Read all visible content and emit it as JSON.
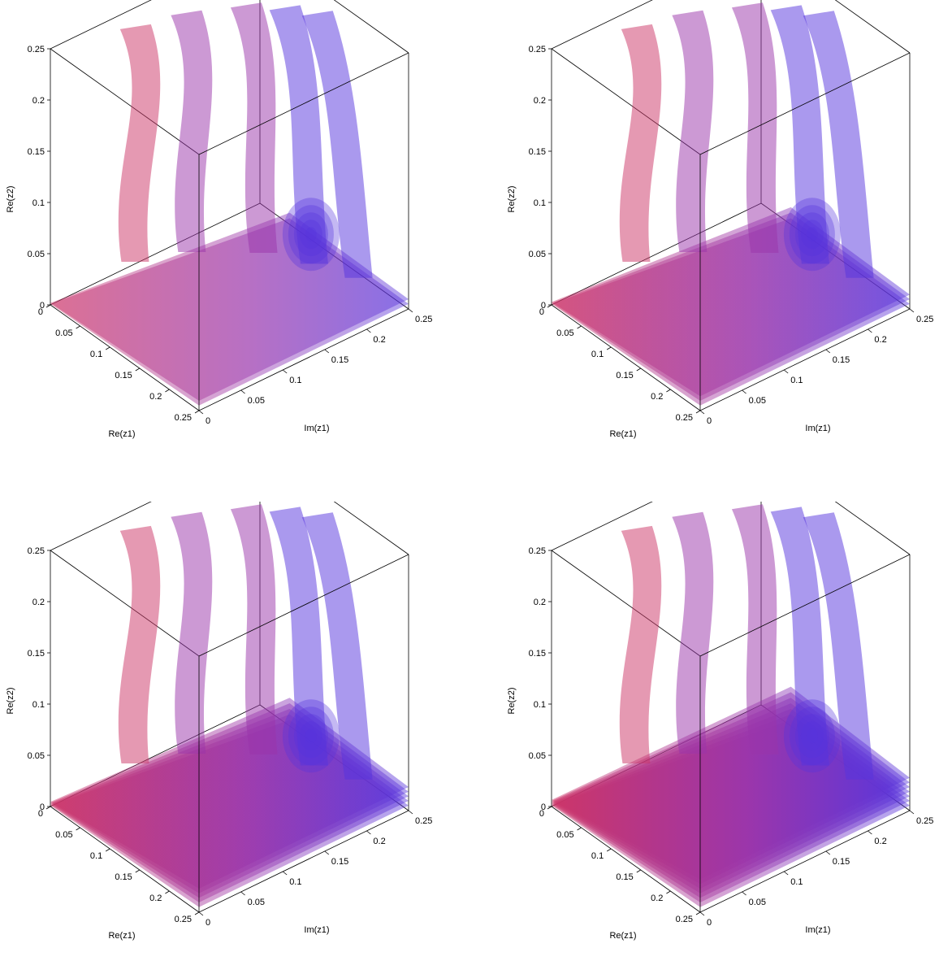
{
  "chart_data": [
    {
      "type": "surface3d",
      "title": "",
      "xlabel": "Re(z1)",
      "ylabel": "Im(z1)",
      "zlabel": "Re(z2)",
      "xlim": [
        0,
        0.25
      ],
      "ylim": [
        0,
        0.25
      ],
      "zlim": [
        0,
        0.25
      ],
      "x_ticks": [
        "0",
        "0.05",
        "0.1",
        "0.15",
        "0.2",
        "0.25"
      ],
      "y_ticks": [
        "0",
        "0.05",
        "0.1",
        "0.15",
        "0.2",
        "0.25"
      ],
      "z_ticks": [
        "0",
        "0.05",
        "0.1",
        "0.15",
        "0.2",
        "0.25"
      ],
      "grid": false,
      "surface_layers": 2,
      "colors": [
        "#cc3366",
        "#9933aa",
        "#5533dd"
      ]
    },
    {
      "type": "surface3d",
      "title": "",
      "xlabel": "Re(z1)",
      "ylabel": "Im(z1)",
      "zlabel": "Re(z2)",
      "xlim": [
        0,
        0.25
      ],
      "ylim": [
        0,
        0.25
      ],
      "zlim": [
        0,
        0.25
      ],
      "x_ticks": [
        "0",
        "0.05",
        "0.1",
        "0.15",
        "0.2",
        "0.25"
      ],
      "y_ticks": [
        "0",
        "0.05",
        "0.1",
        "0.15",
        "0.2",
        "0.25"
      ],
      "z_ticks": [
        "0",
        "0.05",
        "0.1",
        "0.15",
        "0.2",
        "0.25"
      ],
      "grid": false,
      "surface_layers": 3,
      "colors": [
        "#cc3366",
        "#9933aa",
        "#5533dd"
      ]
    },
    {
      "type": "surface3d",
      "title": "",
      "xlabel": "Re(z1)",
      "ylabel": "Im(z1)",
      "zlabel": "Re(z2)",
      "xlim": [
        0,
        0.25
      ],
      "ylim": [
        0,
        0.25
      ],
      "zlim": [
        0,
        0.25
      ],
      "x_ticks": [
        "0",
        "0.05",
        "0.1",
        "0.15",
        "0.2",
        "0.25"
      ],
      "y_ticks": [
        "0",
        "0.05",
        "0.1",
        "0.15",
        "0.2",
        "0.25"
      ],
      "z_ticks": [
        "0",
        "0.05",
        "0.1",
        "0.15",
        "0.2",
        "0.25"
      ],
      "grid": false,
      "surface_layers": 5,
      "colors": [
        "#cc3366",
        "#9933aa",
        "#5533dd"
      ]
    },
    {
      "type": "surface3d",
      "title": "",
      "xlabel": "Re(z1)",
      "ylabel": "Im(z1)",
      "zlabel": "Re(z2)",
      "xlim": [
        0,
        0.25
      ],
      "ylim": [
        0,
        0.25
      ],
      "zlim": [
        0,
        0.25
      ],
      "x_ticks": [
        "0",
        "0.05",
        "0.1",
        "0.15",
        "0.2",
        "0.25"
      ],
      "y_ticks": [
        "0",
        "0.05",
        "0.1",
        "0.15",
        "0.2",
        "0.25"
      ],
      "z_ticks": [
        "0",
        "0.05",
        "0.1",
        "0.15",
        "0.2",
        "0.25"
      ],
      "grid": false,
      "surface_layers": 7,
      "colors": [
        "#cc3366",
        "#9933aa",
        "#5533dd"
      ]
    }
  ]
}
